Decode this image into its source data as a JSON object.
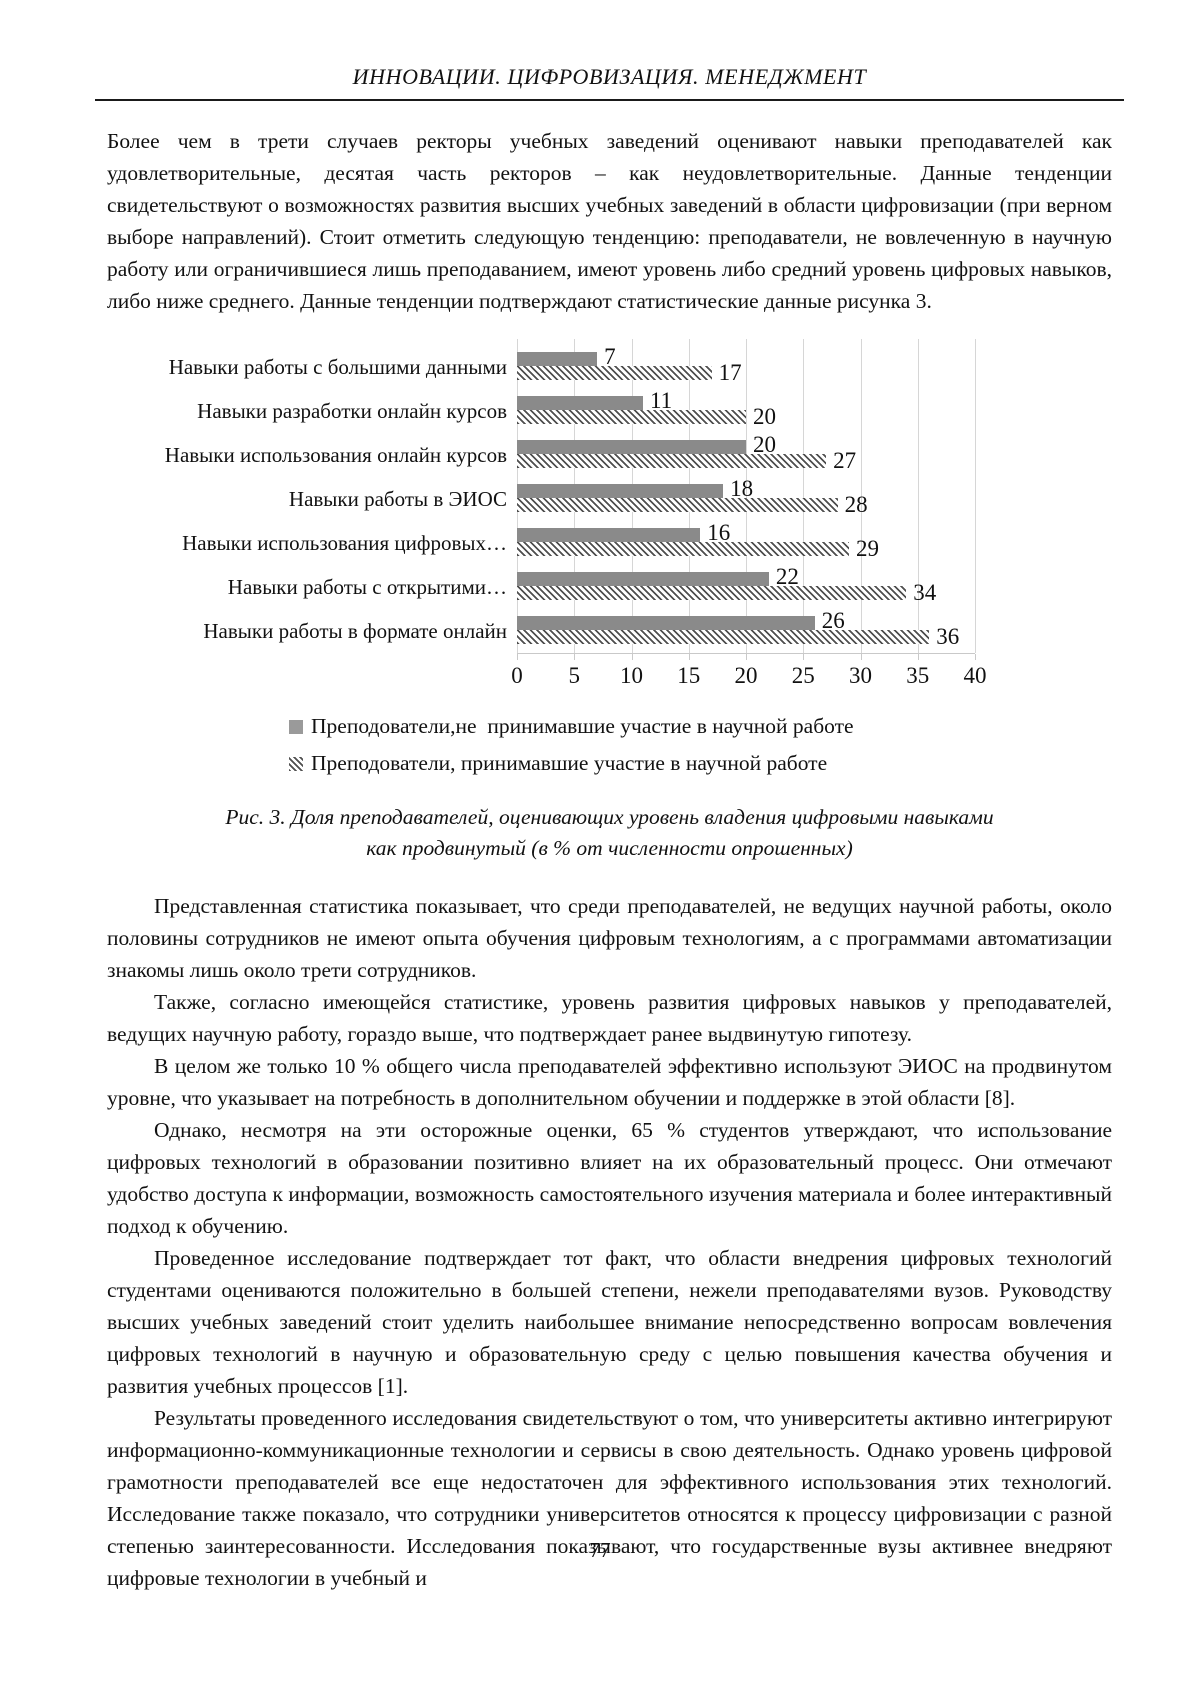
{
  "header": {
    "title": "ИННОВАЦИИ. ЦИФРОВИЗАЦИЯ. МЕНЕДЖМЕНТ"
  },
  "intro": "Более чем в трети случаев ректоры учебных заведений оценивают навыки преподавателей как удовлетворительные, десятая часть ректоров – как неудовлетворительные. Данные тенденции свидетельствуют о возможностях развития высших учебных заведений в области цифровизации (при верном выборе направлений). Стоит отметить следующую тенденцию: преподаватели, не вовлеченную в научную работу или ограничившиеся лишь преподаванием, имеют уровень либо средний уровень цифровых навыков, либо ниже среднего. Данные тенденции подтверждают статистические данные рисунка 3.",
  "chart_data": {
    "type": "bar",
    "orientation": "horizontal",
    "categories": [
      "Навыки работы с большими данными",
      "Навыки разработки онлайн курсов",
      "Навыки использования онлайн курсов",
      "Навыки работы в ЭИОС",
      "Навыки использования цифровых…",
      "Навыки работы с открытими…",
      "Навыки работы в формате онлайн"
    ],
    "series": [
      {
        "name": "Преподователи,не  принимавшие участие в научной работе",
        "style": "solid",
        "color": "#8a8a8a",
        "values": [
          7,
          11,
          20,
          18,
          16,
          22,
          26
        ]
      },
      {
        "name": "Преподователи, принимавшие участие в научной работе",
        "style": "hatch",
        "color": "#4f4f4f",
        "values": [
          17,
          20,
          27,
          28,
          29,
          34,
          36
        ]
      }
    ],
    "xlim": [
      0,
      40
    ],
    "xticks": [
      0,
      5,
      10,
      15,
      20,
      25,
      30,
      35,
      40
    ],
    "grid": true,
    "gridline_color": "#d6d6d6",
    "legend_position": "bottom",
    "value_labels": true
  },
  "caption": {
    "line1": "Рис. 3. Доля преподавателей, оценивающих уровень владения цифровыми навыками",
    "line2": "как продвинутый (в % от численности опрошенных)"
  },
  "paragraphs": [
    "Представленная статистика показывает, что среди преподавателей, не ведущих научной работы, около половины сотрудников не имеют опыта обучения цифровым технологиям, а с программами автоматизации знакомы лишь около трети сотрудников.",
    "Также, согласно имеющейся статистике, уровень развития цифровых навыков у преподавателей, ведущих научную работу, гораздо выше, что подтверждает ранее выдвинутую гипотезу.",
    "В целом же только 10 % общего числа преподавателей эффективно используют ЭИОС на продвинутом уровне, что указывает на потребность в дополнительном обучении и поддержке в этой области [8].",
    "Однако, несмотря на эти осторожные оценки, 65 % студентов утверждают, что использование цифровых технологий в образовании позитивно влияет на их образовательный процесс. Они отмечают удобство доступа к информации, возможность самостоятельного изучения материала и более интерактивный подход к обучению.",
    "Проведенное исследование подтверждает тот факт, что области внедрения цифровых технологий студентами оцениваются положительно в большей степени, нежели преподавателями вузов. Руководству высших учебных заведений стоит уделить наибольшее внимание непосредственно вопросам вовлечения цифровых технологий в научную и образовательную среду с целью повышения качества обучения и развития учебных процессов [1].",
    "Результаты проведенного исследования свидетельствуют о том, что университеты активно интегрируют информационно-коммуникационные технологии и сервисы в свою деятельность. Однако уровень цифровой грамотности преподавателей все еще недостаточен для эффективного использования этих технологий. Исследование также показало, что сотрудники университетов относятся к процессу цифровизации с разной степенью заинтересованности. Исследования показывают, что государственные вузы активнее внедряют цифровые технологии в учебный и"
  ],
  "page": {
    "number": "77"
  }
}
